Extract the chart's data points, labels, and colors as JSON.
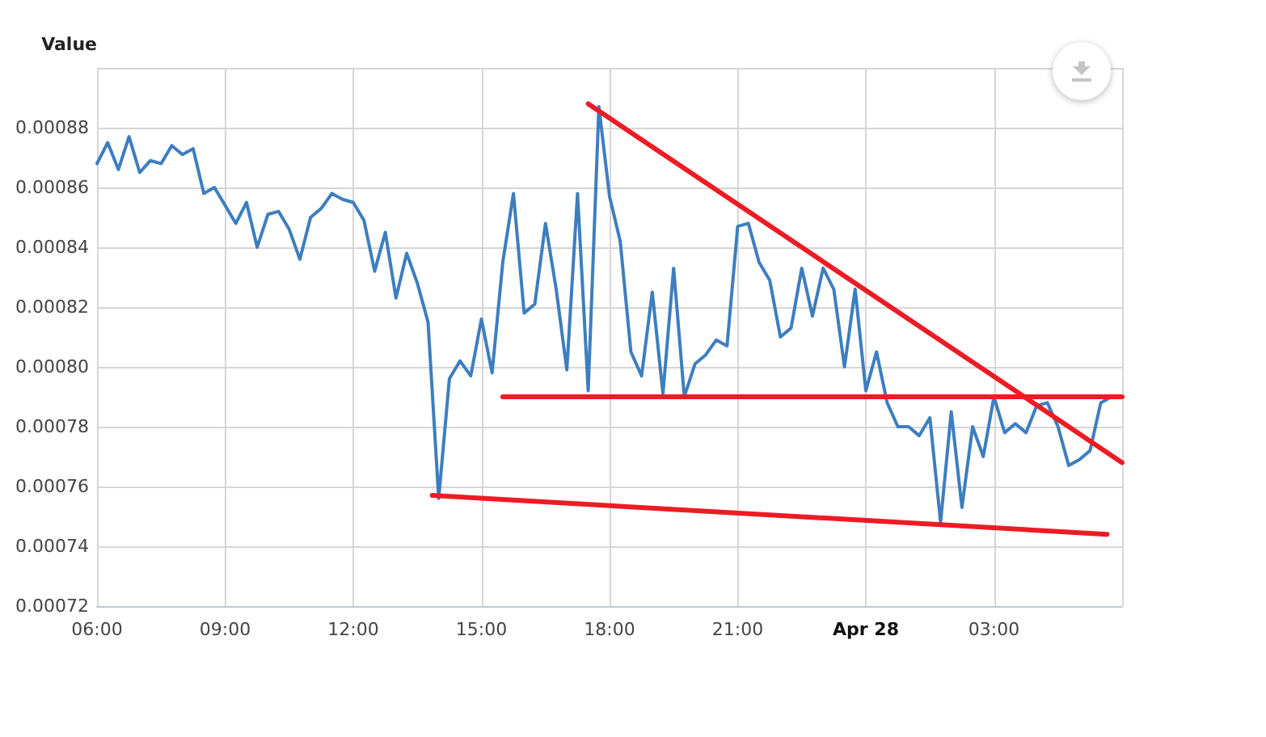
{
  "chart_data": {
    "type": "line",
    "ylabel": "Value",
    "x": [
      "--04-27T06:00",
      "--04-27T06:15",
      "--04-27T06:30",
      "--04-27T06:45",
      "--04-27T07:00",
      "--04-27T07:15",
      "--04-27T07:30",
      "--04-27T07:45",
      "--04-27T08:00",
      "--04-27T08:15",
      "--04-27T08:30",
      "--04-27T08:45",
      "--04-27T09:00",
      "--04-27T09:15",
      "--04-27T09:30",
      "--04-27T09:45",
      "--04-27T10:00",
      "--04-27T10:15",
      "--04-27T10:30",
      "--04-27T10:45",
      "--04-27T11:00",
      "--04-27T11:15",
      "--04-27T11:30",
      "--04-27T11:45",
      "--04-27T12:00",
      "--04-27T12:15",
      "--04-27T12:30",
      "--04-27T12:45",
      "--04-27T13:00",
      "--04-27T13:15",
      "--04-27T13:30",
      "--04-27T13:45",
      "--04-27T14:00",
      "--04-27T14:15",
      "--04-27T14:30",
      "--04-27T14:45",
      "--04-27T15:00",
      "--04-27T15:15",
      "--04-27T15:30",
      "--04-27T15:45",
      "--04-27T16:00",
      "--04-27T16:15",
      "--04-27T16:30",
      "--04-27T16:45",
      "--04-27T17:00",
      "--04-27T17:15",
      "--04-27T17:30",
      "--04-27T17:45",
      "--04-27T18:00",
      "--04-27T18:15",
      "--04-27T18:30",
      "--04-27T18:45",
      "--04-27T19:00",
      "--04-27T19:15",
      "--04-27T19:30",
      "--04-27T19:45",
      "--04-27T20:00",
      "--04-27T20:15",
      "--04-27T20:30",
      "--04-27T20:45",
      "--04-27T21:00",
      "--04-27T21:15",
      "--04-27T21:30",
      "--04-27T21:45",
      "--04-27T22:00",
      "--04-27T22:15",
      "--04-27T22:30",
      "--04-27T22:45",
      "--04-27T23:00",
      "--04-27T23:15",
      "--04-27T23:30",
      "--04-27T23:45",
      "--04-28T00:00",
      "--04-28T00:15",
      "--04-28T00:30",
      "--04-28T00:45",
      "--04-28T01:00",
      "--04-28T01:15",
      "--04-28T01:30",
      "--04-28T01:45",
      "--04-28T02:00",
      "--04-28T02:15",
      "--04-28T02:30",
      "--04-28T02:45",
      "--04-28T03:00",
      "--04-28T03:15",
      "--04-28T03:30",
      "--04-28T03:45",
      "--04-28T04:00",
      "--04-28T04:15",
      "--04-28T04:30",
      "--04-28T04:45",
      "--04-28T05:00",
      "--04-28T05:15",
      "--04-28T05:30",
      "--04-28T05:45"
    ],
    "series": [
      {
        "color": "#3d7ebf",
        "values": [
          0.000868,
          0.000875,
          0.000866,
          0.000877,
          0.000865,
          0.000869,
          0.000868,
          0.000874,
          0.000871,
          0.000873,
          0.000858,
          0.00086,
          0.000854,
          0.000848,
          0.000855,
          0.00084,
          0.000851,
          0.000852,
          0.000846,
          0.000836,
          0.00085,
          0.000853,
          0.000858,
          0.000856,
          0.000855,
          0.000849,
          0.000832,
          0.000845,
          0.000823,
          0.000838,
          0.000828,
          0.000815,
          0.000756,
          0.000796,
          0.000802,
          0.000797,
          0.000816,
          0.000798,
          0.000835,
          0.000858,
          0.000818,
          0.000821,
          0.000848,
          0.000826,
          0.000799,
          0.000858,
          0.000792,
          0.000887,
          0.000857,
          0.000842,
          0.000805,
          0.000797,
          0.000825,
          0.000791,
          0.000833,
          0.00079,
          0.000801,
          0.000804,
          0.000809,
          0.000807,
          0.000847,
          0.000848,
          0.000835,
          0.000829,
          0.00081,
          0.000813,
          0.000833,
          0.000817,
          0.000833,
          0.000826,
          0.0008,
          0.000826,
          0.000792,
          0.000805,
          0.000788,
          0.00078,
          0.00078,
          0.000777,
          0.000783,
          0.000748,
          0.000785,
          0.000753,
          0.00078,
          0.00077,
          0.00079,
          0.000778,
          0.000781,
          0.000778,
          0.000787,
          0.000788,
          0.00078,
          0.000767,
          0.000769,
          0.000772,
          0.000788,
          0.00079
        ]
      },
      {
        "color": "#ed1c24",
        "x": [
          "--04-27T17:30",
          "--04-28T06:00"
        ],
        "values": [
          0.000888,
          0.000768
        ]
      },
      {
        "color": "#ed1c24",
        "x": [
          "--04-27T15:30",
          "--04-28T06:00"
        ],
        "values": [
          0.00079,
          0.00079
        ]
      },
      {
        "color": "#ed1c24",
        "x": [
          "--04-27T13:51",
          "--04-28T05:39"
        ],
        "values": [
          0.000757,
          0.000744
        ]
      }
    ],
    "xlim": [
      "--04-27T06:00",
      "--04-28T06:00"
    ],
    "xticks": [
      {
        "value": "--04-27T06:00",
        "label": "06:00"
      },
      {
        "value": "--04-27T09:00",
        "label": "09:00"
      },
      {
        "value": "--04-27T12:00",
        "label": "12:00"
      },
      {
        "value": "--04-27T15:00",
        "label": "15:00"
      },
      {
        "value": "--04-27T18:00",
        "label": "18:00"
      },
      {
        "value": "--04-27T21:00",
        "label": "21:00"
      },
      {
        "value": "--04-28T00:00",
        "label": "Apr 28"
      },
      {
        "value": "--04-28T03:00",
        "label": "03:00"
      },
      {
        "value": "--04-28T06:00",
        "label": null
      }
    ],
    "ylim": [
      0.00072,
      0.0009
    ],
    "yticks": [
      0.00072,
      0.00074,
      0.00076,
      0.00078,
      {
        "value": 0.0008,
        "label": "0.00080"
      },
      0.00082,
      0.00084,
      0.00086,
      0.00088,
      {
        "value": 0.0009,
        "label": null
      }
    ],
    "grid": true
  }
}
